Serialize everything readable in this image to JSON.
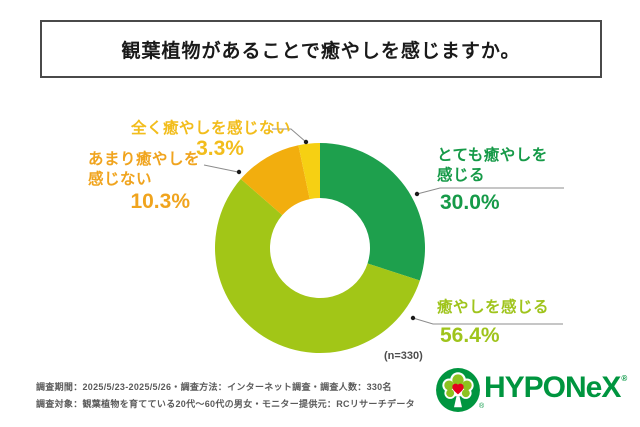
{
  "title": "観葉植物があることで癒やしを感じますか。",
  "chart_data": {
    "type": "pie",
    "subtype": "donut",
    "title": "観葉植物があることで癒やしを感じますか。",
    "sample_note": "(n=330)",
    "start_angle": "top-clockwise",
    "donut_hole_ratio": 0.48,
    "segments": [
      {
        "label": "とても癒やしを感じる",
        "value": 30.0,
        "value_label": "30.0%",
        "color": "#1ea04d"
      },
      {
        "label": "癒やしを感じる",
        "value": 56.4,
        "value_label": "56.4%",
        "color": "#a2c617"
      },
      {
        "label": "あまり癒やしを感じない",
        "value": 10.3,
        "value_label": "10.3%",
        "color": "#f2ae0e"
      },
      {
        "label": "全く癒やしを感じない",
        "value": 3.3,
        "value_label": "3.3%",
        "color": "#f6d013"
      }
    ]
  },
  "callouts": [
    {
      "text": "とても癒やしを\n感じる",
      "pct": "30.0%",
      "color": "#169a48"
    },
    {
      "text": "癒やしを感じる",
      "pct": "56.4%",
      "color": "#9fc41c"
    },
    {
      "text": "あまり癒やしを\n感じない",
      "pct": "10.3%",
      "color": "#f0a41e"
    },
    {
      "text": "全く癒やしを感じない",
      "pct": "3.3%",
      "color": "#f2bd1c"
    }
  ],
  "footer": {
    "line1": "調査期間：2025/5/23-2025/5/26・調査方法：インターネット調査・調査人数：330名",
    "line2": "調査対象：観葉植物を育てている20代～60代の男女・モニター提供元：RCリサーチデータ"
  },
  "logo": {
    "brand": "HYPONeX",
    "registered_mark": "®",
    "brand_color": "#00953f",
    "heart_color": "#e5001e",
    "leaf_color": "#8dc21f"
  }
}
